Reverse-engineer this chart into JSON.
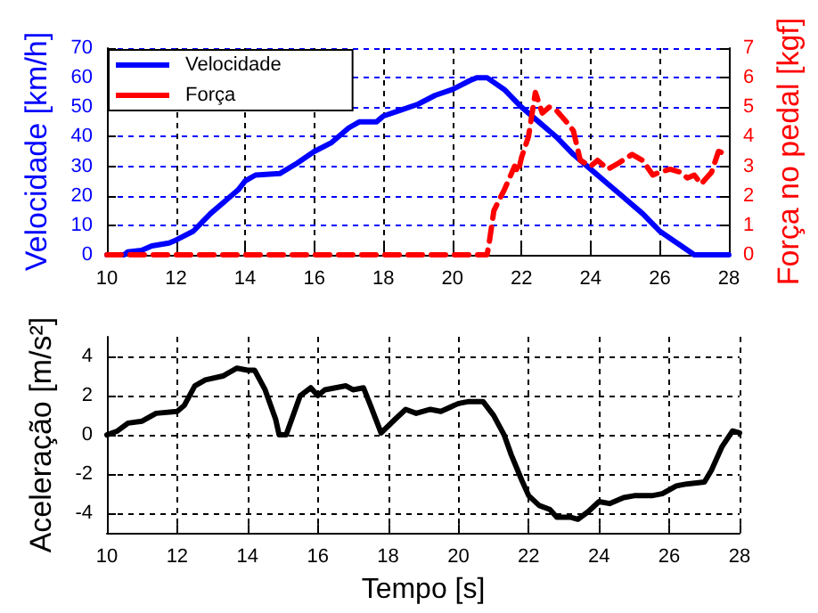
{
  "chart_data": [
    {
      "type": "line",
      "ylabel": "Velocidade [km/h]",
      "y2label": "Força no pedal [kgf]",
      "xlim": [
        10,
        28
      ],
      "xticks": [
        10,
        12,
        14,
        16,
        18,
        20,
        22,
        24,
        26,
        28
      ],
      "ylim": [
        0,
        70
      ],
      "yticks": [
        0,
        10,
        20,
        30,
        40,
        50,
        60,
        70
      ],
      "y2lim": [
        0,
        7
      ],
      "y2ticks": [
        0,
        1,
        2,
        3,
        4,
        5,
        6,
        7
      ],
      "grid": true,
      "legend": "top left",
      "marker": "none",
      "series": [
        {
          "name": "Velocidade",
          "color": "#0000ff",
          "line_style": "solid",
          "x": [
            10,
            10.5,
            10.6,
            11,
            11.3,
            11.8,
            12,
            12.5,
            13,
            13.5,
            13.8,
            14,
            14.3,
            15,
            15.5,
            16,
            16.5,
            17,
            17.3,
            17.8,
            18,
            18.5,
            19,
            19.5,
            20,
            20.5,
            20.7,
            21,
            21.5,
            22,
            22.5,
            23,
            23.5,
            24,
            24.5,
            25,
            25.5,
            26,
            26.5,
            27,
            28
          ],
          "values": [
            0,
            0,
            1,
            1.5,
            3,
            4,
            5,
            8,
            14,
            19,
            22,
            25,
            27,
            27.5,
            31,
            35,
            38,
            43,
            45,
            45,
            47,
            49,
            51,
            54,
            56,
            59,
            60,
            60,
            56,
            50,
            45,
            40,
            34,
            29,
            24,
            19,
            14,
            8,
            4,
            0,
            0
          ]
        },
        {
          "name": "Força",
          "color": "#ff0000",
          "line_style": "dashed",
          "axis": "y2",
          "x": [
            10,
            21,
            21.05,
            21.2,
            21.5,
            21.8,
            21.9,
            22,
            22.2,
            22.4,
            22.6,
            22.8,
            23,
            23.3,
            23.5,
            23.7,
            24,
            24.2,
            24.5,
            24.8,
            25.2,
            25.5,
            25.8,
            26,
            26.3,
            26.6,
            26.8,
            27,
            27.2,
            27.5,
            27.7,
            28
          ],
          "values": [
            0,
            0,
            0.3,
            1.5,
            2.2,
            3,
            2.8,
            3.3,
            4,
            5.5,
            4.8,
            5,
            4.9,
            4.5,
            4.2,
            3.2,
            3,
            3.2,
            2.9,
            3.1,
            3.4,
            3.2,
            2.7,
            2.8,
            2.9,
            2.8,
            2.6,
            2.7,
            2.4,
            2.8,
            3.5,
            3.4
          ]
        }
      ]
    },
    {
      "type": "line",
      "xlabel": "Tempo [s]",
      "ylabel": "Aceleração [m/s²]",
      "xlim": [
        10,
        28
      ],
      "xticks": [
        10,
        12,
        14,
        16,
        18,
        20,
        22,
        24,
        26,
        28
      ],
      "ylim": [
        -5,
        5
      ],
      "yticks": [
        -4,
        -2,
        0,
        2,
        4
      ],
      "grid": true,
      "marker": "none",
      "series": [
        {
          "color": "#000000",
          "line_style": "solid",
          "x": [
            10,
            10.3,
            10.6,
            11,
            11.4,
            12,
            12.2,
            12.5,
            12.8,
            13.3,
            13.7,
            14,
            14.2,
            14.5,
            14.8,
            14.9,
            15.1,
            15.3,
            15.5,
            15.8,
            16,
            16.2,
            16.5,
            16.8,
            17,
            17.3,
            17.5,
            17.8,
            18.2,
            18.5,
            18.8,
            19.2,
            19.5,
            20,
            20.3,
            20.7,
            21,
            21.3,
            21.5,
            21.8,
            22,
            22.3,
            22.6,
            22.8,
            23.2,
            23.4,
            23.7,
            24,
            24.3,
            24.7,
            25,
            25.5,
            25.8,
            26.2,
            26.5,
            27,
            27.2,
            27.5,
            27.8,
            28
          ],
          "values": [
            0,
            0.2,
            0.6,
            0.7,
            1.1,
            1.2,
            1.5,
            2.5,
            2.8,
            3,
            3.4,
            3.3,
            3.3,
            2.3,
            0.8,
            0,
            0,
            1,
            2,
            2.4,
            2,
            2.3,
            2.4,
            2.5,
            2.3,
            2.4,
            1.5,
            0.1,
            0.8,
            1.3,
            1.1,
            1.3,
            1.2,
            1.6,
            1.7,
            1.7,
            1,
            0,
            -1,
            -2.3,
            -3.1,
            -3.6,
            -3.8,
            -4.2,
            -4.2,
            -4.3,
            -3.9,
            -3.4,
            -3.5,
            -3.2,
            -3.1,
            -3.1,
            -3,
            -2.6,
            -2.5,
            -2.4,
            -1.8,
            -0.6,
            0.2,
            0.1
          ]
        }
      ]
    }
  ]
}
